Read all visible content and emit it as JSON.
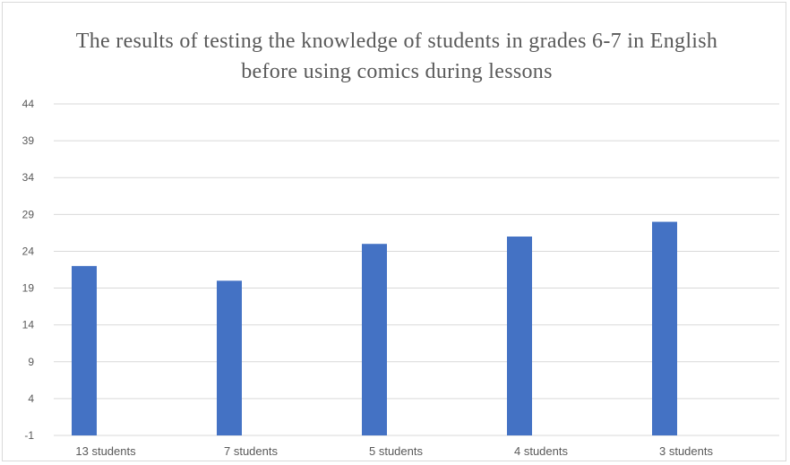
{
  "chart_data": {
    "type": "bar",
    "title": "The results of testing the knowledge of students in grades 6-7 in English before using comics during lessons",
    "categories": [
      "13 students",
      "7 students",
      "5 students",
      "4 students",
      "3 students"
    ],
    "values": [
      22,
      20,
      25,
      26,
      28
    ],
    "xlabel": "",
    "ylabel": "",
    "ylim": [
      -1,
      44
    ],
    "yticks": [
      -1,
      4,
      9,
      14,
      19,
      24,
      29,
      34,
      39,
      44
    ],
    "grid": true,
    "legend": "none",
    "colors": {
      "bar": "#4472c4",
      "grid": "#d9d9d9",
      "text": "#595959"
    }
  }
}
